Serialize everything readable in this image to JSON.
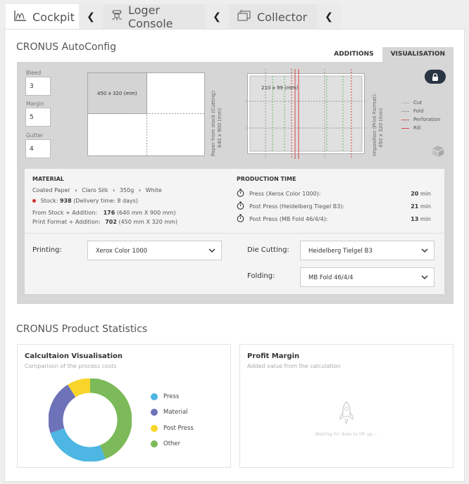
{
  "tabs": [
    {
      "label": "Cockpit",
      "icon": "chart-area-icon",
      "active": true
    },
    {
      "label": "Loger Console",
      "icon": "logger-icon",
      "active": false
    },
    {
      "label": "Collector",
      "icon": "collector-icon",
      "active": false
    }
  ],
  "autoconfig": {
    "title": "CRONUS AutoConfig",
    "subtabs": [
      "ADDITIONS",
      "VISUALISATION"
    ],
    "bleed": {
      "label": "Bleed",
      "value": "3"
    },
    "margin": {
      "label": "Margin",
      "value": "5"
    },
    "gutter": {
      "label": "Gutter",
      "value": "4"
    },
    "stock_sheet_label": "450 x 320 (mm)",
    "stock_caption": "Paper from stock (Cutting):",
    "stock_caption2": "640 x 900 (mm)",
    "imposition_label": "210 x 99 (mm)",
    "imposition_caption": "Imposition (Print Format):",
    "imposition_caption2": "450 x 320 (mm)",
    "legend": [
      {
        "label": "Cut",
        "color": "#999999",
        "style": "dotted"
      },
      {
        "label": "Fold",
        "color": "#999999",
        "style": "dashed"
      },
      {
        "label": "Perforation",
        "color": "#d64545",
        "style": "dashed"
      },
      {
        "label": "Rill",
        "color": "#d64545",
        "style": "solid"
      }
    ],
    "material": {
      "heading": "MATERIAL",
      "path": [
        "Coated Paper",
        "Claro Silk",
        "350g",
        "White"
      ],
      "stock_prefix": "Stock:",
      "stock_value": "938",
      "stock_suffix": "(Delivery time: 8 days)",
      "from_stock_label": "From Stock + Addition:",
      "from_stock_value": "176",
      "from_stock_dim": "(640 mm X 900 mm)",
      "print_format_label": "Print Format  + Addition:",
      "print_format_value": "702",
      "print_format_dim": "(450 mm X 320 mm)"
    },
    "production": {
      "heading": "PRODUCTION TIME",
      "rows": [
        {
          "label": "Press (Xerox Color 1000):",
          "value": "20",
          "unit": "min"
        },
        {
          "label": "Post Press (Heidelberg Tiegel B3):",
          "value": "21",
          "unit": "min"
        },
        {
          "label": "Post Press (MB Fold 46/4/4):",
          "value": "13",
          "unit": "min"
        }
      ]
    },
    "printing": {
      "label": "Printing:",
      "value": "Xerox Color 1000"
    },
    "die_cutting": {
      "label": "Die Cutting:",
      "value": "Heidelberg Tielgel B3"
    },
    "folding": {
      "label": "Folding:",
      "value": "MB Fold 46/4/4"
    }
  },
  "stats": {
    "title": "CRONUS Product Statistics",
    "calc": {
      "title": "Calcultaion Visualisation",
      "subtitle": "Comparison of the process costs"
    },
    "profit": {
      "title": "Profit Margin",
      "subtitle": "Added value from the calculation",
      "waiting": "Waiting for data to lift up ..."
    }
  },
  "chart_data": {
    "type": "pie",
    "donut": true,
    "categories": [
      "Press",
      "Material",
      "Post Press",
      "Other"
    ],
    "values": [
      26,
      21,
      9,
      44
    ],
    "colors": [
      "#4db6e2",
      "#6e72b8",
      "#f9d52b",
      "#7cba59"
    ],
    "legend_position": "right"
  }
}
